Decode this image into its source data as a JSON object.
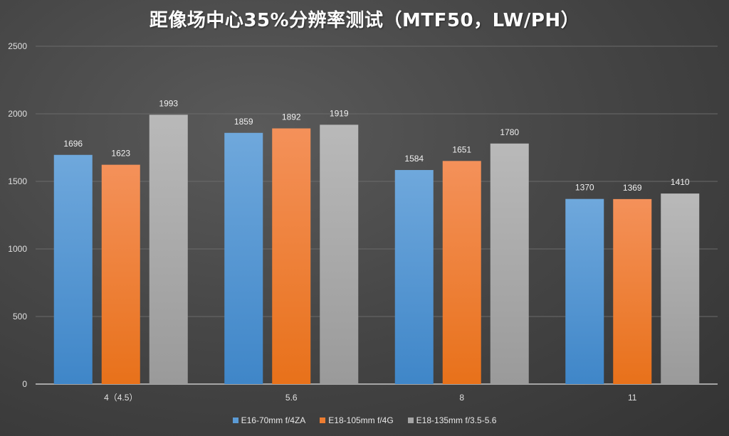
{
  "chart_data": {
    "type": "bar",
    "title": "距像场中心35%分辨率测试（MTF50，LW/PH）",
    "xlabel": "",
    "ylabel": "",
    "ylim": [
      0,
      2500
    ],
    "yticks": [
      "0",
      "500",
      "1000",
      "1500",
      "2000",
      "2500"
    ],
    "grid": true,
    "legend_position": "bottom",
    "categories": [
      "4（4.5）",
      "5.6",
      "8",
      "11"
    ],
    "series": [
      {
        "name": "E16-70mm f/4ZA",
        "color": "#5b9bd5",
        "color_top": "#6fa8dc",
        "color_bottom": "#3f86c8",
        "values": [
          1696,
          1859,
          1584,
          1370
        ]
      },
      {
        "name": "E18-105mm f/4G",
        "color": "#ed7d31",
        "color_top": "#f4915a",
        "color_bottom": "#e8711a",
        "values": [
          1623,
          1892,
          1651,
          1369
        ]
      },
      {
        "name": "E18-135mm f/3.5-5.6",
        "color": "#a5a5a5",
        "color_top": "#b9b9b9",
        "color_bottom": "#9a9a9a",
        "values": [
          1993,
          1919,
          1780,
          1410
        ]
      }
    ]
  }
}
